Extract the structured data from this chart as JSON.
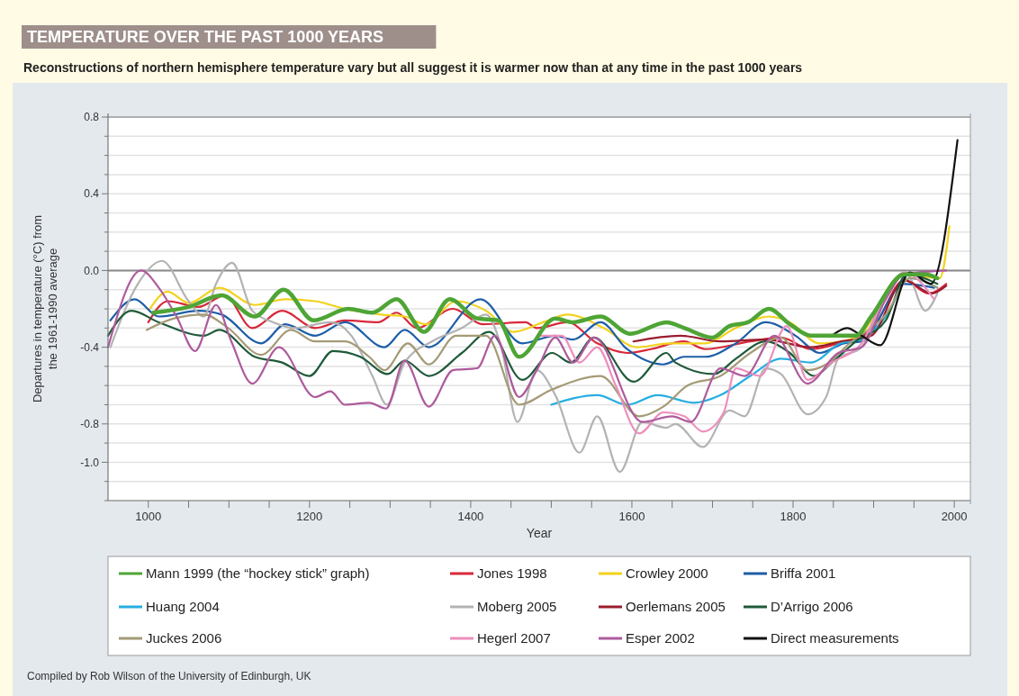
{
  "chart_data": {
    "type": "line",
    "title": "TEMPERATURE OVER THE PAST 1000 YEARS",
    "subtitle": "Reconstructions of northern hemisphere temperature vary but all suggest it is warmer now than at any time in the past 1000 years",
    "xlabel": "Year",
    "ylabel": "Departures in temperature (°C) from the 1961-1990 average",
    "xlim": [
      950,
      2020
    ],
    "ylim": [
      -1.2,
      0.8
    ],
    "xticks": [
      1000,
      {
        "value": 1050,
        "label": null
      },
      {
        "value": 1100,
        "label": null
      },
      {
        "value": 1150,
        "label": null
      },
      1200,
      {
        "value": 1250,
        "label": null
      },
      {
        "value": 1300,
        "label": null
      },
      {
        "value": 1350,
        "label": null
      },
      1400,
      {
        "value": 1450,
        "label": null
      },
      {
        "value": 1500,
        "label": null
      },
      {
        "value": 1550,
        "label": null
      },
      1600,
      {
        "value": 1650,
        "label": null
      },
      {
        "value": 1700,
        "label": null
      },
      {
        "value": 1750,
        "label": null
      },
      1800,
      {
        "value": 1850,
        "label": null
      },
      {
        "value": 1900,
        "label": null
      },
      {
        "value": 1950,
        "label": null
      },
      2000
    ],
    "yticks": [
      0.8,
      {
        "value": 0.7,
        "label": null
      },
      {
        "value": 0.6,
        "label": null
      },
      {
        "value": 0.5,
        "label": null
      },
      0.4,
      {
        "value": 0.3,
        "label": null
      },
      {
        "value": 0.2,
        "label": null
      },
      {
        "value": 0.1,
        "label": null
      },
      {
        "value": 0,
        "label": "0.0"
      },
      {
        "value": -0.1,
        "label": null
      },
      {
        "value": -0.2,
        "label": null
      },
      {
        "value": -0.3,
        "label": null
      },
      -0.4,
      {
        "value": -0.5,
        "label": null
      },
      {
        "value": -0.6,
        "label": null
      },
      {
        "value": -0.7,
        "label": null
      },
      -0.8,
      {
        "value": -0.9,
        "label": null
      },
      {
        "value": -1.0,
        "label": "-1.0"
      },
      {
        "value": -1.1,
        "label": null
      },
      {
        "value": -1.2,
        "label": null
      }
    ],
    "grid": "y",
    "legend": "bottom",
    "ref_lines": [
      {
        "axis": "y",
        "value": 0,
        "color": "#888888"
      }
    ],
    "annotations": [
      "Compiled by Rob Wilson of the University of Edinburgh, UK"
    ],
    "series": [
      {
        "name": "Mann 1999 (the “hockey stick” graph)",
        "color": "#4ea535",
        "x": [
          1006,
          1050,
          1091,
          1132,
          1168,
          1205,
          1248,
          1278,
          1308,
          1342,
          1374,
          1408,
          1434,
          1460,
          1505,
          1527,
          1561,
          1598,
          1643,
          1665,
          1700,
          1721,
          1744,
          1770,
          1796,
          1822,
          1856,
          1878,
          1897,
          1938,
          1964,
          1979
        ],
        "values": [
          -0.22,
          -0.19,
          -0.13,
          -0.24,
          -0.1,
          -0.26,
          -0.2,
          -0.22,
          -0.15,
          -0.32,
          -0.15,
          -0.25,
          -0.26,
          -0.45,
          -0.25,
          -0.27,
          -0.24,
          -0.33,
          -0.27,
          -0.3,
          -0.35,
          -0.29,
          -0.27,
          -0.2,
          -0.28,
          -0.34,
          -0.34,
          -0.34,
          -0.24,
          -0.02,
          -0.02,
          -0.04
        ]
      },
      {
        "name": "Jones 1998",
        "color": "#d8283a",
        "x": [
          1000,
          1024,
          1062,
          1095,
          1129,
          1166,
          1207,
          1244,
          1285,
          1308,
          1333,
          1378,
          1415,
          1468,
          1482,
          1520,
          1557,
          1594,
          1624,
          1665,
          1691,
          1747,
          1785,
          1822,
          1856,
          1897,
          1938,
          1968,
          1990
        ],
        "values": [
          -0.27,
          -0.16,
          -0.19,
          -0.13,
          -0.3,
          -0.21,
          -0.3,
          -0.26,
          -0.27,
          -0.22,
          -0.3,
          -0.2,
          -0.28,
          -0.27,
          -0.3,
          -0.27,
          -0.38,
          -0.43,
          -0.41,
          -0.37,
          -0.41,
          -0.37,
          -0.35,
          -0.41,
          -0.38,
          -0.31,
          -0.05,
          -0.12,
          -0.07
        ]
      },
      {
        "name": "Crowley 2000",
        "color": "#f2d21e",
        "x": [
          1002,
          1024,
          1050,
          1088,
          1132,
          1170,
          1207,
          1244,
          1289,
          1318,
          1344,
          1382,
          1419,
          1453,
          1490,
          1520,
          1565,
          1606,
          1647,
          1691,
          1729,
          1770,
          1796,
          1833,
          1878,
          1938,
          1982,
          1994
        ],
        "values": [
          -0.2,
          -0.11,
          -0.17,
          -0.09,
          -0.18,
          -0.15,
          -0.16,
          -0.2,
          -0.23,
          -0.24,
          -0.28,
          -0.16,
          -0.21,
          -0.32,
          -0.27,
          -0.23,
          -0.3,
          -0.4,
          -0.38,
          -0.38,
          -0.3,
          -0.24,
          -0.27,
          -0.38,
          -0.35,
          -0.02,
          -0.04,
          0.23
        ]
      },
      {
        "name": "Briffa 2001",
        "color": "#1d5ea8",
        "x": [
          953,
          983,
          1013,
          1062,
          1091,
          1140,
          1170,
          1207,
          1244,
          1293,
          1318,
          1348,
          1412,
          1464,
          1505,
          1527,
          1561,
          1594,
          1639,
          1665,
          1691,
          1729,
          1766,
          1803,
          1833,
          1863,
          1885,
          1938,
          1975
        ],
        "values": [
          -0.26,
          -0.15,
          -0.24,
          -0.21,
          -0.23,
          -0.38,
          -0.28,
          -0.34,
          -0.27,
          -0.4,
          -0.31,
          -0.4,
          -0.15,
          -0.38,
          -0.34,
          -0.36,
          -0.27,
          -0.41,
          -0.49,
          -0.45,
          -0.45,
          -0.38,
          -0.27,
          -0.34,
          -0.43,
          -0.38,
          -0.37,
          -0.07,
          -0.09
        ]
      },
      {
        "name": "Huang 2004",
        "color": "#27aee0",
        "x": [
          1500,
          1557,
          1594,
          1632,
          1677,
          1710,
          1747,
          1785,
          1822,
          1859,
          1885,
          1915,
          1945,
          1979
        ],
        "values": [
          -0.7,
          -0.65,
          -0.7,
          -0.65,
          -0.69,
          -0.65,
          -0.55,
          -0.46,
          -0.48,
          -0.38,
          -0.36,
          -0.24,
          -0.04,
          -0.09
        ]
      },
      {
        "name": "Moberg 2005",
        "color": "#b3b3b3",
        "x": [
          953,
          987,
          1017,
          1050,
          1069,
          1084,
          1104,
          1129,
          1155,
          1181,
          1226,
          1252,
          1278,
          1296,
          1318,
          1352,
          1389,
          1419,
          1438,
          1458,
          1482,
          1505,
          1535,
          1557,
          1585,
          1613,
          1643,
          1654,
          1688,
          1721,
          1740,
          1766,
          1785,
          1818,
          1841,
          1856,
          1885,
          1919,
          1941,
          1964,
          1979
        ],
        "values": [
          -0.4,
          -0.07,
          0.05,
          -0.16,
          -0.24,
          -0.07,
          0.04,
          -0.21,
          -0.27,
          -0.3,
          -0.27,
          -0.34,
          -0.55,
          -0.7,
          -0.48,
          -0.37,
          -0.3,
          -0.23,
          -0.4,
          -0.79,
          -0.52,
          -0.65,
          -0.95,
          -0.76,
          -1.05,
          -0.79,
          -0.82,
          -0.8,
          -0.92,
          -0.73,
          -0.76,
          -0.51,
          -0.54,
          -0.75,
          -0.66,
          -0.46,
          -0.4,
          -0.09,
          -0.02,
          -0.21,
          -0.12
        ]
      },
      {
        "name": "Oerlemans 2005",
        "color": "#9b1c2e",
        "x": [
          1602,
          1660,
          1710,
          1766,
          1822,
          1859,
          1897,
          1938,
          1972,
          1990
        ],
        "values": [
          -0.37,
          -0.34,
          -0.37,
          -0.36,
          -0.4,
          -0.37,
          -0.34,
          -0.05,
          -0.12,
          -0.08
        ]
      },
      {
        "name": "D’Arrigo 2006",
        "color": "#1f5a3a",
        "x": [
          950,
          979,
          1013,
          1069,
          1088,
          1132,
          1166,
          1200,
          1229,
          1263,
          1297,
          1318,
          1348,
          1389,
          1423,
          1464,
          1501,
          1524,
          1553,
          1602,
          1643,
          1654,
          1702,
          1729,
          1766,
          1796,
          1826,
          1848,
          1878,
          1915,
          1941,
          1979
        ],
        "values": [
          -0.34,
          -0.21,
          -0.27,
          -0.34,
          -0.31,
          -0.45,
          -0.48,
          -0.55,
          -0.42,
          -0.45,
          -0.54,
          -0.47,
          -0.55,
          -0.43,
          -0.32,
          -0.57,
          -0.43,
          -0.48,
          -0.35,
          -0.58,
          -0.43,
          -0.48,
          -0.54,
          -0.46,
          -0.37,
          -0.43,
          -0.55,
          -0.48,
          -0.37,
          -0.26,
          -0.02,
          -0.07
        ]
      },
      {
        "name": "Juckes 2006",
        "color": "#a49b76",
        "x": [
          998,
          1032,
          1069,
          1099,
          1140,
          1177,
          1207,
          1244,
          1274,
          1293,
          1322,
          1348,
          1382,
          1419,
          1460,
          1501,
          1561,
          1609,
          1639,
          1669,
          1710,
          1747,
          1785,
          1818,
          1841,
          1870,
          1915,
          1945,
          1979
        ],
        "values": [
          -0.31,
          -0.25,
          -0.23,
          -0.3,
          -0.44,
          -0.31,
          -0.37,
          -0.37,
          -0.45,
          -0.52,
          -0.38,
          -0.49,
          -0.34,
          -0.34,
          -0.7,
          -0.62,
          -0.55,
          -0.76,
          -0.71,
          -0.6,
          -0.55,
          -0.43,
          -0.35,
          -0.52,
          -0.49,
          -0.38,
          -0.23,
          -0.04,
          -0.09
        ]
      },
      {
        "name": "Hegerl 2007",
        "color": "#ec8fbd",
        "x": [
          1483,
          1513,
          1535,
          1557,
          1580,
          1609,
          1639,
          1665,
          1688,
          1714,
          1729,
          1759,
          1792,
          1818,
          1848,
          1885,
          1915,
          1938,
          1975
        ],
        "values": [
          -0.34,
          -0.34,
          -0.48,
          -0.4,
          -0.6,
          -0.85,
          -0.74,
          -0.76,
          -0.84,
          -0.74,
          -0.51,
          -0.55,
          -0.29,
          -0.57,
          -0.48,
          -0.38,
          -0.12,
          -0.01,
          -0.15
        ]
      },
      {
        "name": "Esper 2002",
        "color": "#ad5b9c",
        "x": [
          950,
          991,
          1013,
          1035,
          1058,
          1084,
          1103,
          1129,
          1162,
          1207,
          1226,
          1244,
          1274,
          1295,
          1318,
          1348,
          1378,
          1408,
          1430,
          1460,
          1482,
          1505,
          1527,
          1553,
          1613,
          1650,
          1673,
          1710,
          1740,
          1777,
          1818,
          1856,
          1885,
          1915,
          1938,
          1990
        ],
        "values": [
          -0.4,
          0.0,
          -0.09,
          -0.24,
          -0.42,
          -0.18,
          -0.37,
          -0.59,
          -0.4,
          -0.66,
          -0.63,
          -0.7,
          -0.69,
          -0.72,
          -0.47,
          -0.71,
          -0.52,
          -0.51,
          -0.34,
          -0.66,
          -0.52,
          -0.35,
          -0.48,
          -0.35,
          -0.79,
          -0.76,
          -0.79,
          -0.51,
          -0.55,
          -0.34,
          -0.59,
          -0.43,
          -0.4,
          -0.15,
          -0.02,
          0.0
        ]
      },
      {
        "name": "Direct measurements",
        "color": "#111111",
        "x": [
          1848,
          1867,
          1885,
          1908,
          1945,
          1971,
          2004
        ],
        "values": [
          -0.34,
          -0.3,
          -0.34,
          -0.39,
          -0.01,
          -0.07,
          0.68
        ]
      }
    ]
  }
}
